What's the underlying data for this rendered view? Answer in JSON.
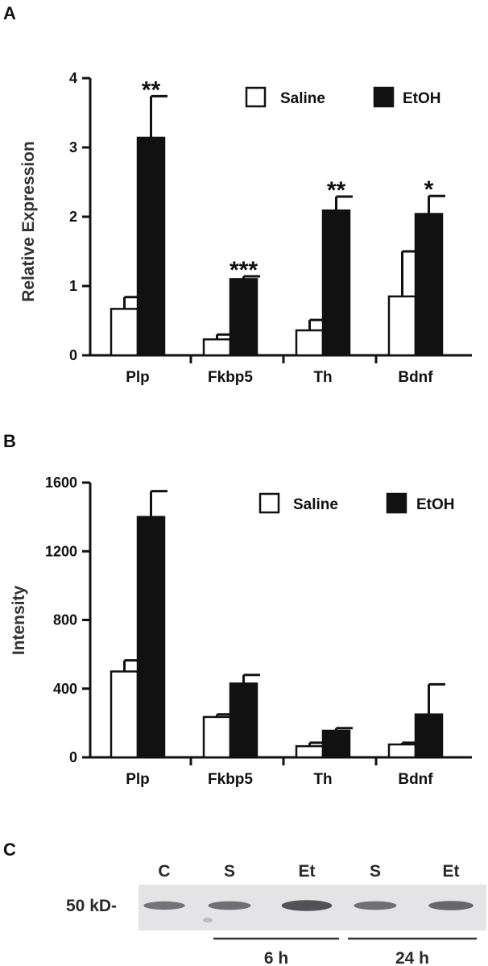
{
  "panels": {
    "a": "A",
    "b": "B",
    "c": "C"
  },
  "colors": {
    "saline": "#ffffff",
    "etoh": "#111111",
    "axis": "#111111"
  },
  "chart_data": [
    {
      "type": "bar",
      "panel": "A",
      "categories": [
        "Plp",
        "Fkbp5",
        "Th",
        "Bdnf"
      ],
      "ylabel": "Relative Expression",
      "ylim": [
        0,
        4
      ],
      "yticks": [
        0,
        1,
        2,
        3,
        4
      ],
      "series": [
        {
          "name": "Saline",
          "values": [
            0.67,
            0.23,
            0.36,
            0.85
          ],
          "errors": [
            0.17,
            0.07,
            0.15,
            0.65
          ]
        },
        {
          "name": "EtOH",
          "values": [
            3.14,
            1.1,
            2.09,
            2.04
          ],
          "errors": [
            0.6,
            0.04,
            0.2,
            0.26
          ]
        }
      ],
      "annotations": [
        "**",
        "***",
        "**",
        "*"
      ],
      "legend": "top-right",
      "grid": false
    },
    {
      "type": "bar",
      "panel": "B",
      "categories": [
        "Plp",
        "Fkbp5",
        "Th",
        "Bdnf"
      ],
      "ylabel": "Intensity",
      "ylim": [
        0,
        1600
      ],
      "yticks": [
        0,
        400,
        800,
        1200,
        1600
      ],
      "series": [
        {
          "name": "Saline",
          "values": [
            500,
            235,
            65,
            75
          ],
          "errors": [
            65,
            15,
            20,
            10
          ]
        },
        {
          "name": "EtOH",
          "values": [
            1400,
            430,
            155,
            250
          ],
          "errors": [
            150,
            50,
            15,
            175
          ]
        }
      ],
      "annotations": [
        "",
        "",
        "",
        ""
      ],
      "legend": "top-right",
      "grid": false
    }
  ],
  "blot": {
    "marker": "50 kD-",
    "lanes": [
      "C",
      "S",
      "Et",
      "S",
      "Et"
    ],
    "band_intensity": [
      0.55,
      0.6,
      0.95,
      0.6,
      0.7
    ],
    "groups": [
      "6 h",
      "24 h"
    ]
  }
}
